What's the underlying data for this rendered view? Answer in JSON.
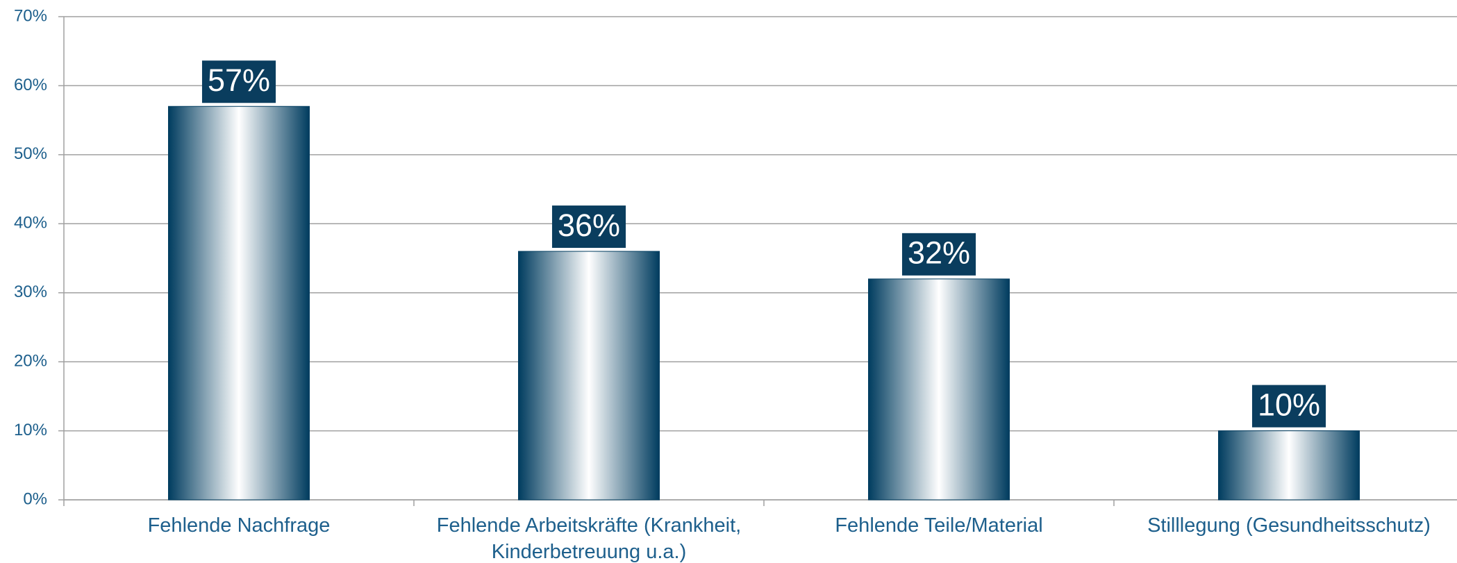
{
  "chart_data": {
    "type": "bar",
    "categories": [
      "Fehlende Nachfrage",
      "Fehlende Arbeitskräfte (Krankheit, Kinderbetreuung u.a.)",
      "Fehlende Teile/Material",
      "Stilllegung (Gesundheitsschutz)"
    ],
    "values": [
      57,
      36,
      32,
      10
    ],
    "value_labels": [
      "57%",
      "36%",
      "32%",
      "10%"
    ],
    "color": "#003c5f",
    "ylim": [
      0,
      70
    ],
    "yticks": [
      {
        "value": 0,
        "label": "0%"
      },
      {
        "value": 10,
        "label": "10%"
      },
      {
        "value": 20,
        "label": "20%"
      },
      {
        "value": 30,
        "label": "30%"
      },
      {
        "value": 40,
        "label": "40%"
      },
      {
        "value": 50,
        "label": "50%"
      },
      {
        "value": 60,
        "label": "60%"
      },
      {
        "value": 70,
        "label": "70%"
      }
    ],
    "grid": true
  }
}
